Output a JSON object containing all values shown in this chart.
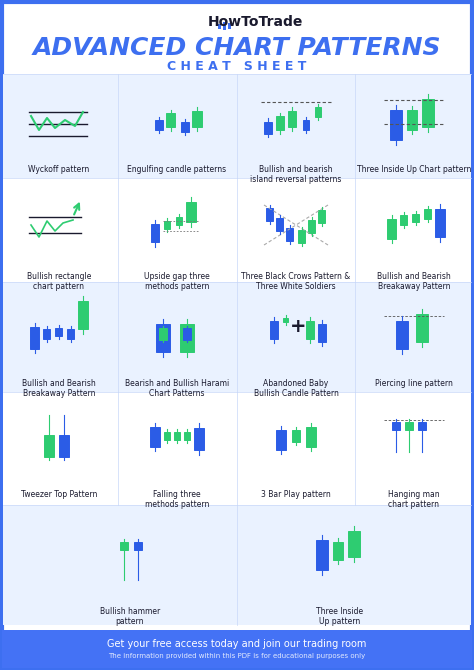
{
  "title": "ADVANCED CHART PATTERNS",
  "subtitle": "C H E A T   S H E E T",
  "brand": "HowToTrade",
  "footer_line1": "Get your free access today and join our trading room",
  "footer_line2": "The information provided within this PDF is for educational purposes only",
  "background_color": "#ffffff",
  "border_color": "#3d6ff0",
  "header_bg": "#ffffff",
  "footer_bg": "#4472f5",
  "title_color": "#3d6ff0",
  "subtitle_color": "#3d6ff0",
  "green": "#2ecc71",
  "blue": "#2b5ce6",
  "dark": "#1a1a2e",
  "row_bg_light": "#eaf0ff",
  "row_bg_white": "#ffffff",
  "patterns": [
    {
      "name": "Wyckoff pattern",
      "col": 0,
      "row": 0
    },
    {
      "name": "Engulfing candle patterns",
      "col": 1,
      "row": 0
    },
    {
      "name": "Bullish and bearish\nisland reversal patterns",
      "col": 2,
      "row": 0
    },
    {
      "name": "Three Inside Up Chart pattern",
      "col": 3,
      "row": 0
    },
    {
      "name": "Bullish rectangle\nchart pattern",
      "col": 0,
      "row": 1
    },
    {
      "name": "Upside gap three\nmethods pattern",
      "col": 1,
      "row": 1
    },
    {
      "name": "Three Black Crows Pattern &\nThree White Soldiers",
      "col": 2,
      "row": 1
    },
    {
      "name": "Bullish and Bearish\nBreakaway Pattern",
      "col": 3,
      "row": 1
    },
    {
      "name": "Bullish and Bearish\nBreakaway Pattern",
      "col": 0,
      "row": 2
    },
    {
      "name": "Bearish and Bullish Harami\nChart Patterns",
      "col": 1,
      "row": 2
    },
    {
      "name": "Abandoned Baby\nBullish Candle Pattern",
      "col": 2,
      "row": 2
    },
    {
      "name": "Piercing line pattern",
      "col": 3,
      "row": 2
    },
    {
      "name": "Tweezer Top Pattern",
      "col": 0,
      "row": 3
    },
    {
      "name": "Falling three\nmethods pattern",
      "col": 1,
      "row": 3
    },
    {
      "name": "3 Bar Play pattern",
      "col": 2,
      "row": 3
    },
    {
      "name": "Hanging man\nchart pattern",
      "col": 3,
      "row": 3
    },
    {
      "name": "Bullish hammer\npattern",
      "col": 1,
      "row": 4
    },
    {
      "name": "Three Inside\nUp pattern",
      "col": 2,
      "row": 4
    }
  ]
}
